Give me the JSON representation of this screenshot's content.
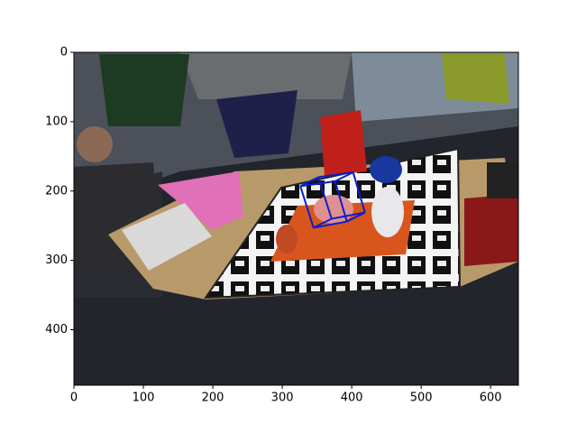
{
  "chart_data": {
    "type": "image",
    "xlim": [
      0,
      640
    ],
    "ylim": [
      480,
      0
    ],
    "xticks": [
      0,
      100,
      200,
      300,
      400,
      500,
      600
    ],
    "yticks": [
      0,
      100,
      200,
      300,
      400
    ],
    "box": {
      "color": "#0a1ecc",
      "x": [
        326,
        376,
        393,
        345,
        352,
        402,
        419,
        371
      ],
      "y": [
        193,
        186,
        244,
        253,
        180,
        173,
        231,
        240
      ]
    }
  }
}
